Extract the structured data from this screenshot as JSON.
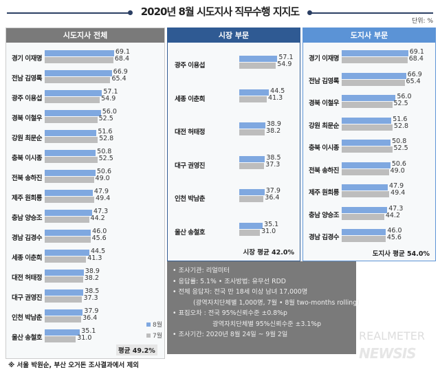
{
  "title": "2020년 8월 시도지사 직무수행 지지도",
  "unit": "단위: %",
  "colors": {
    "aug": "#7fa8e0",
    "jul": "#bdbdbd",
    "header_all": "#7a7a7a",
    "header_mayor": "#2f5a93",
    "header_governor": "#5b93d6"
  },
  "chart_data": [
    {
      "type": "bar",
      "title": "시도지사 전체",
      "series": [
        {
          "name": "8월"
        },
        {
          "name": "7월"
        }
      ],
      "categories": [
        "경기 이재명",
        "전남 김영록",
        "광주 이용섭",
        "경북 이철우",
        "강원 최문순",
        "충북 이시종",
        "전북 송하진",
        "제주 원희룡",
        "충남 양승조",
        "경남 김경수",
        "세종 이춘희",
        "대전 허태정",
        "대구 권영진",
        "인천 박남춘",
        "울산 송철호"
      ],
      "aug": [
        69.1,
        66.9,
        57.1,
        56.0,
        51.6,
        50.8,
        50.6,
        47.9,
        47.3,
        46.0,
        44.5,
        38.9,
        38.5,
        37.9,
        35.1
      ],
      "jul": [
        68.4,
        65.4,
        54.9,
        52.5,
        52.8,
        52.5,
        49.0,
        49.4,
        44.2,
        45.6,
        41.3,
        38.2,
        37.3,
        36.4,
        31.0
      ],
      "average": "평균 49.2%"
    },
    {
      "type": "bar",
      "title": "시장 부문",
      "categories": [
        "광주 이용섭",
        "세종 이춘희",
        "대전 허태정",
        "대구 권영진",
        "인천 박남춘",
        "울산 송철호"
      ],
      "aug": [
        57.1,
        44.5,
        38.9,
        38.5,
        37.9,
        35.1
      ],
      "jul": [
        54.9,
        41.3,
        38.2,
        37.3,
        36.4,
        31.0
      ],
      "average": "시장 평균 42.0%"
    },
    {
      "type": "bar",
      "title": "도지사 부문",
      "categories": [
        "경기 이재명",
        "전남 김영록",
        "경북 이철우",
        "강원 최문순",
        "충북 이시종",
        "전북 송하진",
        "제주 원희룡",
        "충남 양승조",
        "경남 김경수"
      ],
      "aug": [
        69.1,
        66.9,
        56.0,
        51.6,
        50.8,
        50.6,
        47.9,
        47.3,
        46.0
      ],
      "jul": [
        68.4,
        65.4,
        52.5,
        52.8,
        52.5,
        49.0,
        49.4,
        44.2,
        45.6
      ],
      "average": "도지사 평균 54.0%"
    }
  ],
  "legend": {
    "aug": "8월",
    "jul": "7월"
  },
  "info": [
    "• 조사기관: 리얼미터",
    "• 응답률: 5.1% • 조사방법: 유무선 RDD",
    "• 전체 응답자: 전국 만 18세 이상 남녀 17,000명",
    "(광역자치단체별 1,000명, 7월 • 8월 two-months rolling)",
    "• 표집오차 : 전국 95%신뢰수준 ±0.8%p",
    "광역자치단체별 95%신뢰수준 ±3.1%p",
    "• 조사기간: 2020년 8월 24일 ~ 9월 2일"
  ],
  "watermark": {
    "top": "REALMETER",
    "bottom": "NEWSIS"
  },
  "note": "※ 서울 박원순, 부산 오거돈 조사결과에서 제외"
}
